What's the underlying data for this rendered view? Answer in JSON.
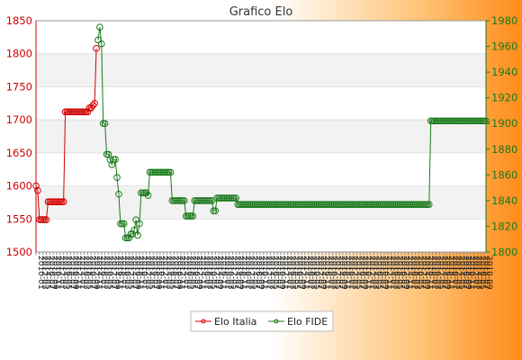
{
  "chart_data": {
    "type": "line",
    "title": "Grafico Elo",
    "x_tick_labels_note": "dense overlapping date labels on x axis (illegible)",
    "y_left": {
      "min": 1500,
      "max": 1850,
      "ticks": [
        1500,
        1550,
        1600,
        1650,
        1700,
        1750,
        1800,
        1850
      ]
    },
    "y_right": {
      "min": 1800,
      "max": 1980,
      "ticks": [
        1800,
        1820,
        1840,
        1860,
        1880,
        1900,
        1920,
        1940,
        1960,
        1980
      ]
    },
    "grid": true,
    "legend_position": "bottom",
    "series": [
      {
        "name": "Elo Italia",
        "axis": "left",
        "color": "#d40000",
        "values": [
          1600,
          1593,
          1549,
          1549,
          1549,
          1549,
          1549,
          1576,
          1576,
          1576,
          1576,
          1576,
          1576,
          1576,
          1576,
          1576,
          1576,
          1712,
          1712,
          1712,
          1712,
          1712,
          1712,
          1712,
          1712,
          1712,
          1712,
          1712,
          1712,
          1712,
          1712,
          1718,
          1718,
          1722,
          1725,
          1808
        ]
      },
      {
        "name": "Elo FIDE",
        "axis": "right",
        "color": "#1a7a1a",
        "values": [
          null,
          null,
          null,
          null,
          null,
          null,
          null,
          null,
          null,
          null,
          null,
          null,
          null,
          null,
          null,
          null,
          null,
          null,
          null,
          null,
          null,
          null,
          null,
          null,
          null,
          null,
          null,
          null,
          null,
          null,
          null,
          null,
          null,
          null,
          null,
          null,
          1965,
          1975,
          1962,
          1900,
          1900,
          1876,
          1876,
          1872,
          1868,
          1872,
          1872,
          1858,
          1845,
          1822,
          1822,
          1822,
          1811,
          1811,
          1811,
          1814,
          1814,
          1817,
          1825,
          1813,
          1822,
          1846,
          1846,
          1846,
          1846,
          1844,
          1862,
          1862,
          1862,
          1862,
          1862,
          1862,
          1862,
          1862,
          1862,
          1862,
          1862,
          1862,
          1862,
          1840,
          1840,
          1840,
          1840,
          1840,
          1840,
          1840,
          1840,
          1828,
          1828,
          1828,
          1828,
          1828,
          1840,
          1840,
          1840,
          1840,
          1840,
          1840,
          1840,
          1840,
          1840,
          1840,
          1840,
          1832,
          1832,
          1842,
          1842,
          1842,
          1842,
          1842,
          1842,
          1842,
          1842,
          1842,
          1842,
          1842,
          1842,
          1837,
          1837,
          1837,
          1837,
          1837,
          1837,
          1837,
          1837,
          1837,
          1837,
          1837,
          1837,
          1837,
          1837,
          1837,
          1837,
          1837,
          1837,
          1837,
          1837,
          1837,
          1837,
          1837,
          1837,
          1837,
          1837,
          1837,
          1837,
          1837,
          1837,
          1837,
          1837,
          1837,
          1837,
          1837,
          1837,
          1837,
          1837,
          1837,
          1837,
          1837,
          1837,
          1837,
          1837,
          1837,
          1837,
          1837,
          1837,
          1837,
          1837,
          1837,
          1837,
          1837,
          1837,
          1837,
          1837,
          1837,
          1837,
          1837,
          1837,
          1837,
          1837,
          1837,
          1837,
          1837,
          1837,
          1837,
          1837,
          1837,
          1837,
          1837,
          1837,
          1837,
          1837,
          1837,
          1837,
          1837,
          1837,
          1837,
          1837,
          1837,
          1837,
          1837,
          1837,
          1837,
          1837,
          1837,
          1837,
          1837,
          1837,
          1837,
          1837,
          1837,
          1837,
          1837,
          1837,
          1837,
          1837,
          1837,
          1837,
          1837,
          1837,
          1837,
          1837,
          1837,
          1837,
          1837,
          1837,
          1837,
          1837,
          1837,
          1837,
          1902,
          1902,
          1902,
          1902,
          1902,
          1902,
          1902,
          1902,
          1902,
          1902,
          1902,
          1902,
          1902,
          1902,
          1902,
          1902,
          1902,
          1902,
          1902,
          1902,
          1902,
          1902,
          1902,
          1902,
          1902,
          1902,
          1902,
          1902,
          1902,
          1902,
          1902,
          1902,
          1902
        ]
      }
    ]
  }
}
